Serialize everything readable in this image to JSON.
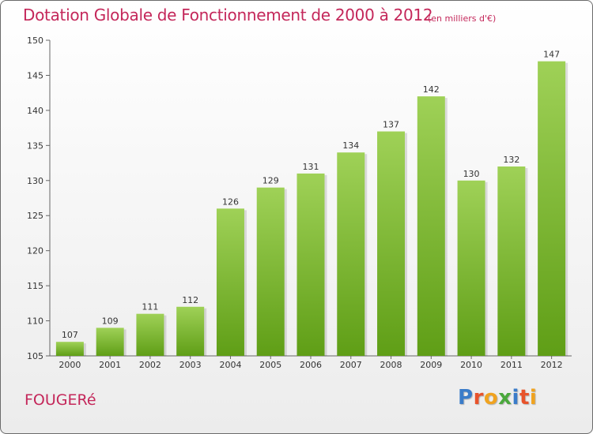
{
  "chart_data": {
    "type": "bar",
    "title": "Dotation Globale de Fonctionnement de 2000 à 2012",
    "subtitle": "(en milliers d'€)",
    "categories": [
      "2000",
      "2001",
      "2002",
      "2003",
      "2004",
      "2005",
      "2006",
      "2007",
      "2008",
      "2009",
      "2010",
      "2011",
      "2012"
    ],
    "values": [
      107,
      109,
      111,
      112,
      126,
      129,
      131,
      134,
      137,
      142,
      130,
      132,
      147
    ],
    "xlabel": "",
    "ylabel": "",
    "ylim": [
      105,
      150
    ],
    "yticks": [
      105,
      110,
      115,
      120,
      125,
      130,
      135,
      140,
      145,
      150
    ],
    "grid": false,
    "bar_color_top": "#9fd157",
    "bar_color_bottom": "#5f9e16"
  },
  "footer": {
    "commune": "FOUGERé",
    "logo_letters": [
      {
        "ch": "P",
        "color": "#3a7cc9"
      },
      {
        "ch": "r",
        "color": "#e8532b"
      },
      {
        "ch": "o",
        "color": "#f0a31f"
      },
      {
        "ch": "x",
        "color": "#4aa83c"
      },
      {
        "ch": "i",
        "color": "#3a7cc9"
      },
      {
        "ch": "t",
        "color": "#e8532b"
      },
      {
        "ch": "i",
        "color": "#f0a31f"
      }
    ]
  }
}
